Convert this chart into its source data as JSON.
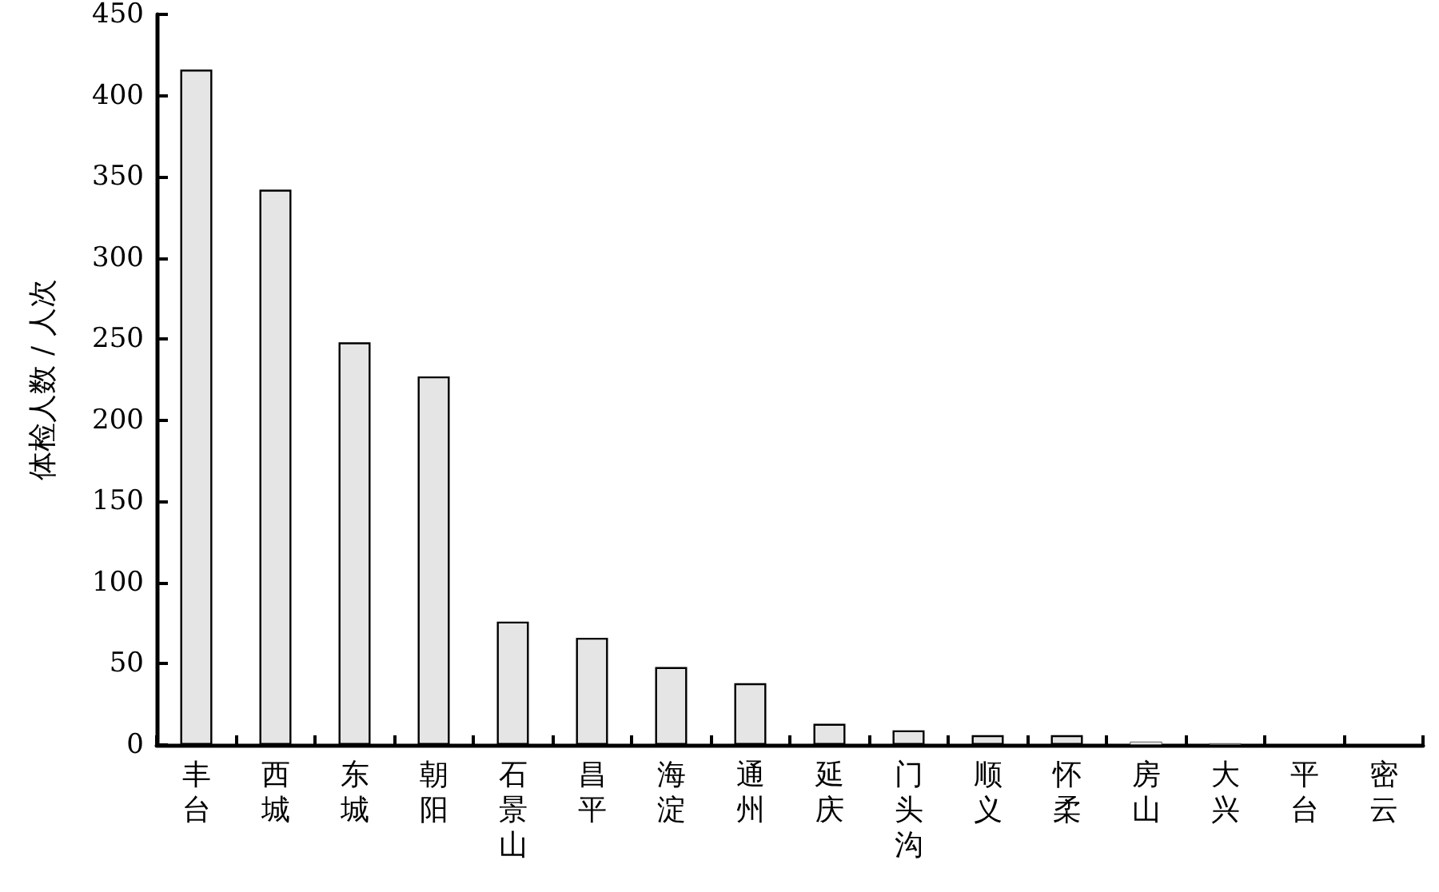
{
  "chart_data": {
    "type": "bar",
    "ylabel": "体检人数 / 人次",
    "categories": [
      "丰台",
      "西城",
      "东城",
      "朝阳",
      "石景山",
      "昌平",
      "海淀",
      "通州",
      "延庆",
      "门头沟",
      "顺义",
      "怀柔",
      "房山",
      "大兴",
      "平台",
      "密云"
    ],
    "values": [
      416,
      342,
      248,
      227,
      76,
      66,
      48,
      38,
      13,
      9,
      6,
      6,
      2,
      1,
      0,
      0
    ],
    "color": "#e5e5e5",
    "ylim": [
      0,
      450
    ],
    "yticks": [
      0,
      50,
      100,
      150,
      200,
      250,
      300,
      350,
      400,
      450
    ],
    "grid": false
  }
}
